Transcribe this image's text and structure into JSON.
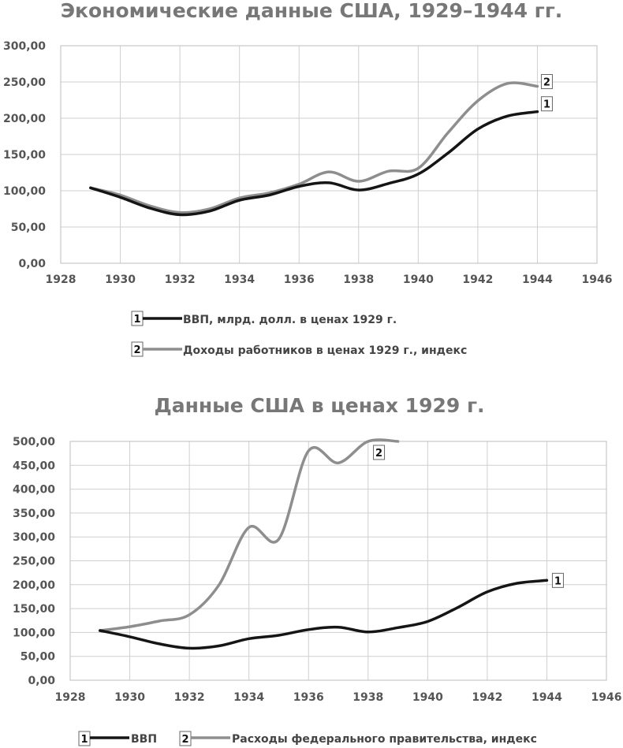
{
  "chart_data": [
    {
      "type": "line",
      "title": "Экономические данные США, 1929–1944 гг.",
      "xlabel": "",
      "ylabel": "",
      "xlim": [
        1928,
        1946
      ],
      "ylim": [
        0,
        300
      ],
      "x_ticks": [
        1928,
        1930,
        1932,
        1934,
        1936,
        1938,
        1940,
        1942,
        1944,
        1946
      ],
      "x_tick_labels": [
        "1928",
        "1930",
        "1932",
        "1934",
        "1936",
        "1938",
        "1940",
        "1942",
        "1944",
        "1946"
      ],
      "y_ticks": [
        0,
        50,
        100,
        150,
        200,
        250,
        300
      ],
      "y_tick_labels": [
        "0,00",
        "50,00",
        "100,00",
        "150,00",
        "200,00",
        "250,00",
        "300,00"
      ],
      "grid": true,
      "legend_position": "bottom",
      "x": [
        1929,
        1930,
        1931,
        1932,
        1933,
        1934,
        1935,
        1936,
        1937,
        1938,
        1939,
        1940,
        1941,
        1942,
        1943,
        1944
      ],
      "series": [
        {
          "name": "ВВП, млрд. долл. в ценах 1929 г.",
          "marker": "1",
          "color": "#151515",
          "values": [
            104,
            91,
            76,
            67,
            72,
            87,
            94,
            106,
            111,
            101,
            110,
            123,
            152,
            185,
            203,
            209
          ]
        },
        {
          "name": "Доходы работников в ценах 1929 г., индекс",
          "marker": "2",
          "color": "#8e8e8e",
          "values": [
            104,
            94,
            79,
            70,
            75,
            90,
            97,
            109,
            126,
            113,
            127,
            131,
            180,
            224,
            248,
            244
          ]
        }
      ]
    },
    {
      "type": "line",
      "title": "Данные США в ценах 1929 г.",
      "xlabel": "",
      "ylabel": "",
      "xlim": [
        1928,
        1946
      ],
      "ylim": [
        0,
        500
      ],
      "x_ticks": [
        1928,
        1930,
        1932,
        1934,
        1936,
        1938,
        1940,
        1942,
        1944,
        1946
      ],
      "x_tick_labels": [
        "1928",
        "1930",
        "1932",
        "1934",
        "1936",
        "1938",
        "1940",
        "1942",
        "1944",
        "1946"
      ],
      "y_ticks": [
        0,
        50,
        100,
        150,
        200,
        250,
        300,
        350,
        400,
        450,
        500
      ],
      "y_tick_labels": [
        "0,00",
        "50,00",
        "100,00",
        "150,00",
        "200,00",
        "250,00",
        "300,00",
        "350,00",
        "400,00",
        "450,00",
        "500,00"
      ],
      "grid": true,
      "legend_position": "bottom",
      "series": [
        {
          "name": "ВВП",
          "marker": "1",
          "color": "#151515",
          "x": [
            1929,
            1930,
            1931,
            1932,
            1933,
            1934,
            1935,
            1936,
            1937,
            1938,
            1939,
            1940,
            1941,
            1942,
            1943,
            1944
          ],
          "values": [
            104,
            91,
            76,
            67,
            72,
            87,
            94,
            106,
            111,
            101,
            110,
            123,
            152,
            185,
            203,
            209
          ]
        },
        {
          "name": "Расходы федерального правительства, индекс",
          "marker": "2",
          "color": "#8e8e8e",
          "x": [
            1929,
            1930,
            1931,
            1932,
            1933,
            1934,
            1935,
            1936,
            1937,
            1938,
            1939
          ],
          "values": [
            104,
            112,
            124,
            137,
            200,
            320,
            295,
            480,
            455,
            500,
            500
          ]
        }
      ]
    }
  ]
}
